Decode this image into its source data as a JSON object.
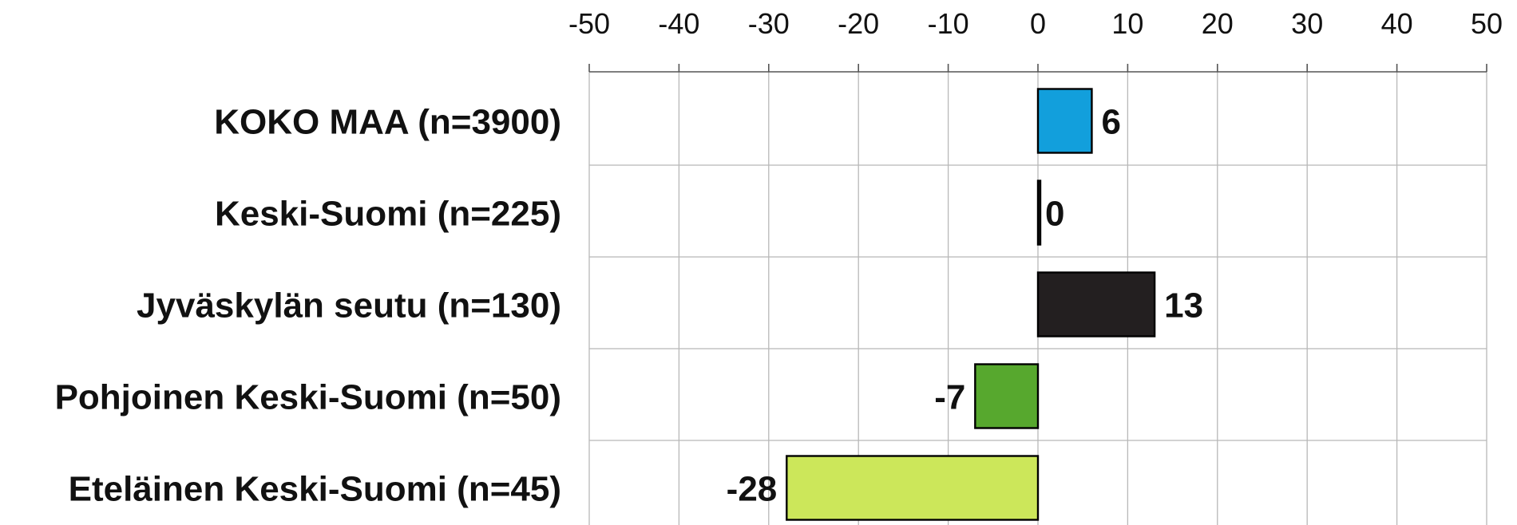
{
  "chart_data": {
    "type": "bar",
    "orientation": "horizontal",
    "categories": [
      "KOKO MAA (n=3900)",
      "Keski-Suomi (n=225)",
      "Jyväskylän seutu (n=130)",
      "Pohjoinen Keski-Suomi (n=50)",
      "Eteläinen Keski-Suomi (n=45)"
    ],
    "values": [
      6,
      0,
      13,
      -7,
      -28
    ],
    "value_labels": [
      "6",
      "0",
      "13",
      "-7",
      "-28"
    ],
    "colors": [
      "#129fdc",
      "#1a1a1a",
      "#231f20",
      "#57a82e",
      "#cce75a"
    ],
    "xlim": [
      -50,
      50
    ],
    "xticks": [
      "-50",
      "-40",
      "-30",
      "-20",
      "-10",
      "0",
      "10",
      "20",
      "30",
      "40",
      "50"
    ],
    "xtick_values": [
      -50,
      -40,
      -30,
      -20,
      -10,
      0,
      10,
      20,
      30,
      40,
      50
    ],
    "x_axis_position": "top",
    "grid": true,
    "title": "",
    "xlabel": "",
    "ylabel": ""
  }
}
